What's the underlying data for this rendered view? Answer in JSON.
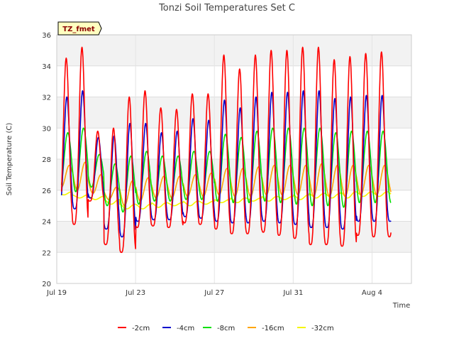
{
  "chart_data": {
    "type": "line",
    "title": "Tonzi Soil Temperatures Set C",
    "xlabel": "Time",
    "ylabel": "Soil Temperature (C)",
    "tag": "TZ_fmet",
    "ylim": [
      20,
      36
    ],
    "xlim": [
      0,
      22.5
    ],
    "yticks": [
      20,
      22,
      24,
      26,
      28,
      30,
      32,
      34,
      36
    ],
    "xticks": [
      {
        "label": "Jul 19",
        "value": 0
      },
      {
        "label": "Jul 23",
        "value": 5
      },
      {
        "label": "Jul 27",
        "value": 10
      },
      {
        "label": "Jul 31",
        "value": 15
      },
      {
        "label": "Aug 4",
        "value": 20
      }
    ],
    "grid": true,
    "legend_placement": "bottom",
    "series": [
      {
        "name": "-2cm",
        "color": "#ff0000",
        "days": [
          {
            "min": 24.0,
            "max": 34.5
          },
          {
            "min": 23.8,
            "max": 35.2
          },
          {
            "min": 25.3,
            "max": 29.8
          },
          {
            "min": 22.5,
            "max": 30.0
          },
          {
            "min": 22.0,
            "max": 32.0
          },
          {
            "min": 23.6,
            "max": 32.4
          },
          {
            "min": 23.7,
            "max": 31.3
          },
          {
            "min": 23.6,
            "max": 31.2
          },
          {
            "min": 23.9,
            "max": 32.2
          },
          {
            "min": 23.8,
            "max": 32.2
          },
          {
            "min": 23.5,
            "max": 34.7
          },
          {
            "min": 23.2,
            "max": 33.8
          },
          {
            "min": 23.2,
            "max": 34.7
          },
          {
            "min": 23.3,
            "max": 35.0
          },
          {
            "min": 23.1,
            "max": 35.0
          },
          {
            "min": 22.9,
            "max": 35.2
          },
          {
            "min": 22.5,
            "max": 35.2
          },
          {
            "min": 22.5,
            "max": 34.4
          },
          {
            "min": 22.4,
            "max": 34.6
          },
          {
            "min": 23.1,
            "max": 34.8
          },
          {
            "min": 23.0,
            "max": 34.9
          }
        ]
      },
      {
        "name": "-4cm",
        "color": "#0000cc",
        "days": [
          {
            "min": 25.0,
            "max": 32.0
          },
          {
            "min": 24.8,
            "max": 32.4
          },
          {
            "min": 25.5,
            "max": 29.4
          },
          {
            "min": 23.5,
            "max": 29.5
          },
          {
            "min": 23.0,
            "max": 30.3
          },
          {
            "min": 24.0,
            "max": 30.3
          },
          {
            "min": 24.1,
            "max": 29.7
          },
          {
            "min": 24.1,
            "max": 29.8
          },
          {
            "min": 24.3,
            "max": 30.6
          },
          {
            "min": 24.2,
            "max": 30.5
          },
          {
            "min": 24.0,
            "max": 31.8
          },
          {
            "min": 23.9,
            "max": 31.3
          },
          {
            "min": 23.9,
            "max": 32.0
          },
          {
            "min": 24.0,
            "max": 32.3
          },
          {
            "min": 23.9,
            "max": 32.3
          },
          {
            "min": 23.8,
            "max": 32.4
          },
          {
            "min": 23.6,
            "max": 32.4
          },
          {
            "min": 23.6,
            "max": 31.9
          },
          {
            "min": 23.5,
            "max": 32.0
          },
          {
            "min": 24.0,
            "max": 32.1
          },
          {
            "min": 24.0,
            "max": 32.1
          }
        ]
      },
      {
        "name": "-8cm",
        "color": "#00e000",
        "days": [
          {
            "min": 26.0,
            "max": 29.7
          },
          {
            "min": 25.9,
            "max": 30.0
          },
          {
            "min": 26.2,
            "max": 28.3
          },
          {
            "min": 25.0,
            "max": 27.7
          },
          {
            "min": 24.6,
            "max": 28.2
          },
          {
            "min": 25.1,
            "max": 28.5
          },
          {
            "min": 25.3,
            "max": 28.2
          },
          {
            "min": 25.3,
            "max": 28.2
          },
          {
            "min": 25.4,
            "max": 28.5
          },
          {
            "min": 25.4,
            "max": 28.5
          },
          {
            "min": 25.3,
            "max": 29.6
          },
          {
            "min": 25.2,
            "max": 29.4
          },
          {
            "min": 25.2,
            "max": 29.8
          },
          {
            "min": 25.3,
            "max": 30.0
          },
          {
            "min": 25.2,
            "max": 30.0
          },
          {
            "min": 25.1,
            "max": 30.0
          },
          {
            "min": 25.0,
            "max": 30.0
          },
          {
            "min": 25.0,
            "max": 29.7
          },
          {
            "min": 24.9,
            "max": 29.8
          },
          {
            "min": 25.2,
            "max": 29.8
          },
          {
            "min": 25.2,
            "max": 29.8
          }
        ]
      },
      {
        "name": "-16cm",
        "color": "#ffa500",
        "days": [
          {
            "min": 26.2,
            "max": 27.6
          },
          {
            "min": 26.0,
            "max": 27.8
          },
          {
            "min": 25.8,
            "max": 27.0
          },
          {
            "min": 25.4,
            "max": 26.2
          },
          {
            "min": 25.0,
            "max": 26.6
          },
          {
            "min": 25.3,
            "max": 26.8
          },
          {
            "min": 25.5,
            "max": 26.9
          },
          {
            "min": 25.5,
            "max": 26.9
          },
          {
            "min": 25.6,
            "max": 27.0
          },
          {
            "min": 25.6,
            "max": 27.1
          },
          {
            "min": 25.7,
            "max": 27.4
          },
          {
            "min": 25.6,
            "max": 27.4
          },
          {
            "min": 25.6,
            "max": 27.5
          },
          {
            "min": 25.7,
            "max": 27.6
          },
          {
            "min": 25.7,
            "max": 27.6
          },
          {
            "min": 25.7,
            "max": 27.6
          },
          {
            "min": 25.6,
            "max": 27.7
          },
          {
            "min": 25.6,
            "max": 27.6
          },
          {
            "min": 25.6,
            "max": 27.6
          },
          {
            "min": 25.7,
            "max": 27.6
          },
          {
            "min": 25.7,
            "max": 27.6
          }
        ]
      },
      {
        "name": "-32cm",
        "color": "#f5f500",
        "days": [
          {
            "min": 25.7,
            "max": 25.9
          },
          {
            "min": 25.5,
            "max": 25.7
          },
          {
            "min": 25.4,
            "max": 25.6
          },
          {
            "min": 25.1,
            "max": 25.4
          },
          {
            "min": 24.8,
            "max": 25.1
          },
          {
            "min": 24.8,
            "max": 25.1
          },
          {
            "min": 24.9,
            "max": 25.2
          },
          {
            "min": 25.0,
            "max": 25.2
          },
          {
            "min": 25.0,
            "max": 25.3
          },
          {
            "min": 25.1,
            "max": 25.3
          },
          {
            "min": 25.2,
            "max": 25.4
          },
          {
            "min": 25.2,
            "max": 25.5
          },
          {
            "min": 25.3,
            "max": 25.5
          },
          {
            "min": 25.3,
            "max": 25.6
          },
          {
            "min": 25.4,
            "max": 25.6
          },
          {
            "min": 25.4,
            "max": 25.7
          },
          {
            "min": 25.5,
            "max": 25.8
          },
          {
            "min": 25.5,
            "max": 25.8
          },
          {
            "min": 25.5,
            "max": 25.9
          },
          {
            "min": 25.6,
            "max": 25.9
          },
          {
            "min": 25.6,
            "max": 25.9
          }
        ]
      }
    ]
  }
}
